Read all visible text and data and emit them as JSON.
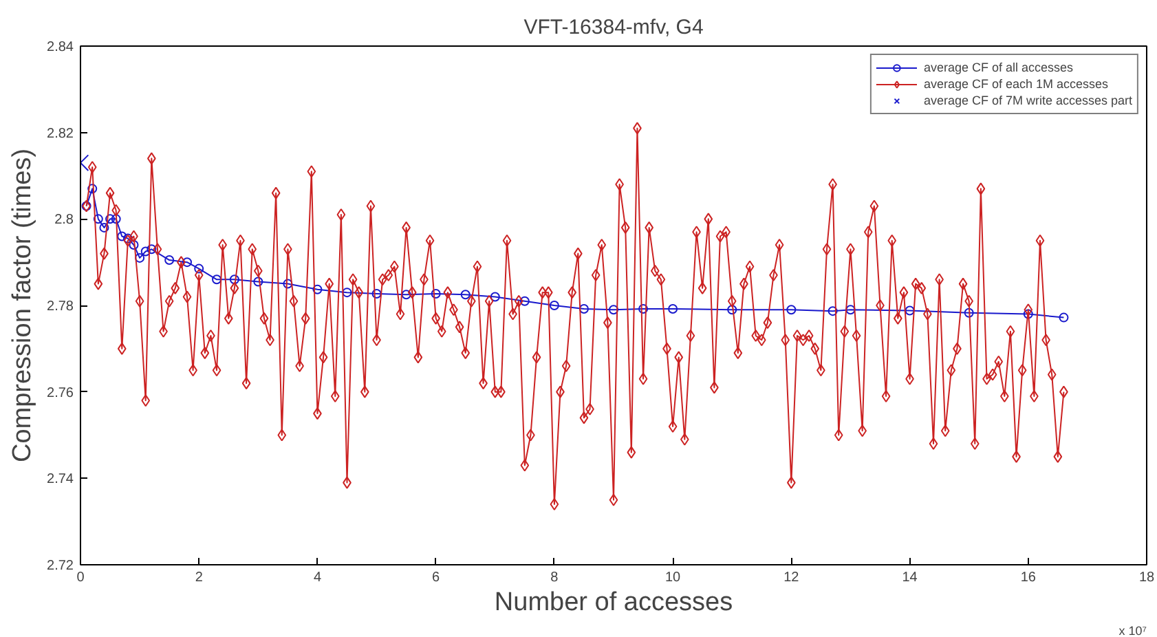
{
  "chart_data": {
    "type": "line",
    "title": "VFT-16384-mfv, G4",
    "xlabel": "Number of accesses",
    "ylabel": "Compression factor (times)",
    "annotations": [
      "x 10⁷"
    ],
    "xlim": [
      0,
      18
    ],
    "xticks": [
      0,
      2,
      4,
      6,
      8,
      10,
      12,
      14,
      16,
      18
    ],
    "ylim": [
      2.72,
      2.84
    ],
    "yticks": [
      2.72,
      2.74,
      2.76,
      2.78,
      2.8,
      2.82,
      2.84
    ],
    "grid": false,
    "legend": "top right",
    "series": [
      {
        "name": "average CF of all accesses",
        "marker": "circle",
        "color": "#1a1acc",
        "x": [
          0.1,
          0.2,
          0.3,
          0.4,
          0.5,
          0.6,
          0.7,
          0.8,
          0.9,
          1.0,
          1.1,
          1.2,
          1.5,
          1.8,
          2.0,
          2.3,
          2.6,
          3.0,
          3.5,
          4.0,
          4.5,
          5.0,
          5.5,
          6.0,
          6.5,
          7.0,
          7.5,
          8.0,
          8.5,
          9.0,
          9.5,
          10.0,
          11.0,
          12.0,
          12.7,
          13.0,
          14.0,
          15.0,
          16.0,
          16.6
        ],
        "values": [
          2.803,
          2.807,
          2.8,
          2.798,
          2.8,
          2.8,
          2.796,
          2.7955,
          2.794,
          2.791,
          2.7925,
          2.793,
          2.7905,
          2.79,
          2.7885,
          2.786,
          2.786,
          2.7855,
          2.785,
          2.7837,
          2.783,
          2.7827,
          2.7825,
          2.7827,
          2.7825,
          2.782,
          2.781,
          2.78,
          2.7792,
          2.779,
          2.7792,
          2.7792,
          2.779,
          2.779,
          2.7787,
          2.779,
          2.7788,
          2.7783,
          2.778,
          2.7772
        ]
      },
      {
        "name": "average CF of each 1M accesses",
        "marker": "diamond",
        "color": "#cc2222",
        "x": [
          0.1,
          0.2,
          0.3,
          0.4,
          0.5,
          0.6,
          0.7,
          0.8,
          0.9,
          1.0,
          1.1,
          1.2,
          1.3,
          1.4,
          1.5,
          1.6,
          1.7,
          1.8,
          1.9,
          2.0,
          2.1,
          2.2,
          2.3,
          2.4,
          2.5,
          2.6,
          2.7,
          2.8,
          2.9,
          3.0,
          3.1,
          3.2,
          3.3,
          3.4,
          3.5,
          3.6,
          3.7,
          3.8,
          3.9,
          4.0,
          4.1,
          4.2,
          4.3,
          4.4,
          4.5,
          4.6,
          4.7,
          4.8,
          4.9,
          5.0,
          5.1,
          5.2,
          5.3,
          5.4,
          5.5,
          5.6,
          5.7,
          5.8,
          5.9,
          6.0,
          6.1,
          6.2,
          6.3,
          6.4,
          6.5,
          6.6,
          6.7,
          6.8,
          6.9,
          7.0,
          7.1,
          7.2,
          7.3,
          7.4,
          7.5,
          7.6,
          7.7,
          7.8,
          7.9,
          8.0,
          8.1,
          8.2,
          8.3,
          8.4,
          8.5,
          8.6,
          8.7,
          8.8,
          8.9,
          9.0,
          9.1,
          9.2,
          9.3,
          9.4,
          9.5,
          9.6,
          9.7,
          9.8,
          9.9,
          10.0,
          10.1,
          10.2,
          10.3,
          10.4,
          10.5,
          10.6,
          10.7,
          10.8,
          10.9,
          11.0,
          11.1,
          11.2,
          11.3,
          11.4,
          11.5,
          11.6,
          11.7,
          11.8,
          11.9,
          12.0,
          12.1,
          12.2,
          12.3,
          12.4,
          12.5,
          12.6,
          12.7,
          12.8,
          12.9,
          13.0,
          13.1,
          13.2,
          13.3,
          13.4,
          13.5,
          13.6,
          13.7,
          13.8,
          13.9,
          14.0,
          14.1,
          14.2,
          14.3,
          14.4,
          14.5,
          14.6,
          14.7,
          14.8,
          14.9,
          15.0,
          15.1,
          15.2,
          15.3,
          15.4,
          15.5,
          15.6,
          15.7,
          15.8,
          15.9,
          16.0,
          16.1,
          16.2,
          16.3,
          16.4,
          16.5,
          16.6
        ],
        "values": [
          2.803,
          2.812,
          2.785,
          2.792,
          2.806,
          2.802,
          2.77,
          2.795,
          2.796,
          2.781,
          2.758,
          2.814,
          2.793,
          2.774,
          2.781,
          2.784,
          2.79,
          2.782,
          2.765,
          2.787,
          2.769,
          2.773,
          2.765,
          2.794,
          2.777,
          2.784,
          2.795,
          2.762,
          2.793,
          2.788,
          2.777,
          2.772,
          2.806,
          2.75,
          2.793,
          2.781,
          2.766,
          2.777,
          2.811,
          2.755,
          2.768,
          2.785,
          2.759,
          2.801,
          2.739,
          2.786,
          2.783,
          2.76,
          2.803,
          2.772,
          2.786,
          2.787,
          2.789,
          2.778,
          2.798,
          2.783,
          2.768,
          2.786,
          2.795,
          2.777,
          2.774,
          2.783,
          2.779,
          2.775,
          2.769,
          2.781,
          2.789,
          2.762,
          2.781,
          2.76,
          2.76,
          2.795,
          2.778,
          2.781,
          2.743,
          2.75,
          2.768,
          2.783,
          2.783,
          2.734,
          2.76,
          2.766,
          2.783,
          2.792,
          2.754,
          2.756,
          2.787,
          2.794,
          2.776,
          2.735,
          2.808,
          2.798,
          2.746,
          2.821,
          2.763,
          2.798,
          2.788,
          2.786,
          2.77,
          2.752,
          2.768,
          2.749,
          2.773,
          2.797,
          2.784,
          2.8,
          2.761,
          2.796,
          2.797,
          2.781,
          2.769,
          2.785,
          2.789,
          2.773,
          2.772,
          2.776,
          2.787,
          2.794,
          2.772,
          2.739,
          2.773,
          2.772,
          2.773,
          2.77,
          2.765,
          2.793,
          2.808,
          2.75,
          2.774,
          2.793,
          2.773,
          2.751,
          2.797,
          2.803,
          2.78,
          2.759,
          2.795,
          2.777,
          2.783,
          2.763,
          2.785,
          2.784,
          2.778,
          2.748,
          2.786,
          2.751,
          2.765,
          2.77,
          2.785,
          2.781,
          2.748,
          2.807,
          2.763,
          2.764,
          2.767,
          2.759,
          2.774,
          2.745,
          2.765,
          2.779,
          2.759,
          2.795,
          2.772,
          2.764,
          2.745,
          2.76
        ]
      },
      {
        "name": "average CF of 7M write accesses part",
        "type": "scatter",
        "marker": "cross",
        "color": "#1a1acc",
        "x": [
          0
        ],
        "values": [
          2.813
        ]
      }
    ]
  }
}
